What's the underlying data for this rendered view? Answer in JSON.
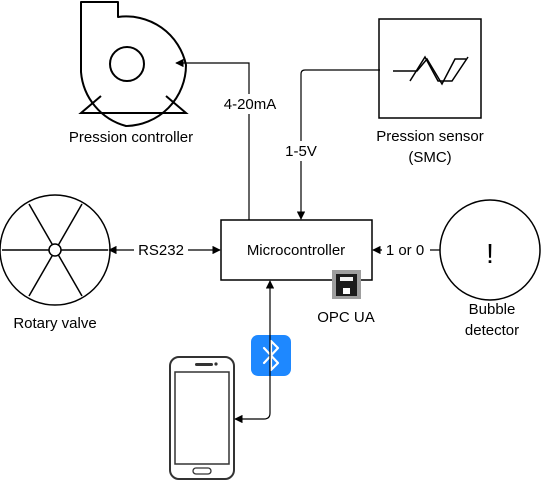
{
  "nodes": {
    "pression_controller": {
      "label": "Pression controller",
      "icon": "centrifugal-pump-icon"
    },
    "pression_sensor": {
      "label_line1": "Pression sensor",
      "label_line2": "(SMC)",
      "icon": "pressure-sensor-icon"
    },
    "rotary_valve": {
      "label": "Rotary valve",
      "icon": "rotary-valve-icon"
    },
    "microcontroller": {
      "label": "Microcontroller"
    },
    "opc_ua": {
      "label": "OPC UA",
      "icon": "ethernet-port-icon"
    },
    "bubble_detector": {
      "label_line1": "Bubble",
      "label_line2": "detector",
      "symbol": "!"
    },
    "smartphone": {
      "icon": "smartphone-icon"
    },
    "bluetooth": {
      "icon": "bluetooth-icon",
      "color": "#1E88FF"
    }
  },
  "edges": {
    "controller_link": "4-20mA",
    "sensor_link": "1-5V",
    "valve_link": "RS232",
    "bubble_link": "1 or 0"
  },
  "colors": {
    "stroke": "#000000",
    "bluetooth": "#1E88FF",
    "background": "#ffffff"
  }
}
